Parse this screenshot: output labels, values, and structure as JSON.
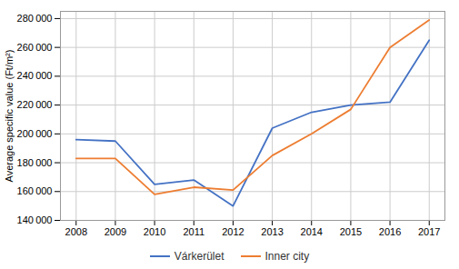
{
  "chart_data": {
    "type": "line",
    "x": [
      2008,
      2009,
      2010,
      2011,
      2012,
      2013,
      2014,
      2015,
      2016,
      2017
    ],
    "series": [
      {
        "name": "Várkerület",
        "color": "#4472c4",
        "values": [
          196000,
          195000,
          165000,
          168000,
          150000,
          204000,
          215000,
          220000,
          222000,
          265000
        ]
      },
      {
        "name": "Inner city",
        "color": "#ed7d31",
        "values": [
          183000,
          183000,
          158000,
          163000,
          161000,
          185000,
          200000,
          217000,
          260000,
          279000
        ]
      }
    ],
    "ylabel": "Average specific value (Ft/m²)",
    "xlim": [
      2007.6,
      2017.4
    ],
    "xticks": [
      2008,
      2009,
      2010,
      2011,
      2012,
      2013,
      2014,
      2015,
      2016,
      2017
    ],
    "ylim": [
      140000,
      285000
    ],
    "yticks": [
      {
        "value": 140000,
        "label": "140 000"
      },
      {
        "value": 160000,
        "label": "160 000"
      },
      {
        "value": 180000,
        "label": "180 000"
      },
      {
        "value": 200000,
        "label": "200 000"
      },
      {
        "value": 220000,
        "label": "220 000"
      },
      {
        "value": 240000,
        "label": "240 000"
      },
      {
        "value": 260000,
        "label": "260 000"
      },
      {
        "value": 280000,
        "label": "280 000"
      }
    ],
    "grid": true,
    "legend": "bottom"
  }
}
